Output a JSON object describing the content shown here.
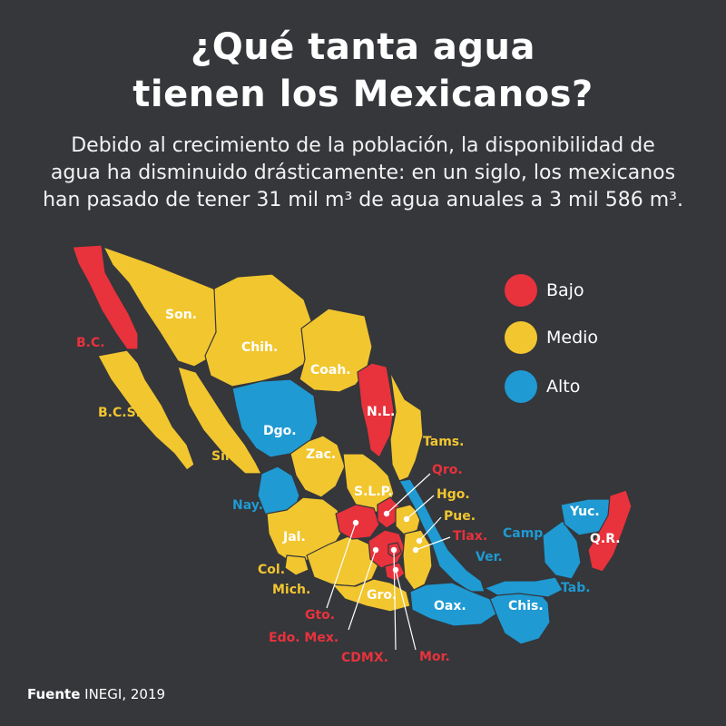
{
  "title_line1": "¿Qué tanta agua",
  "title_line2": "tienen los Mexicanos?",
  "subtitle_line1": "Debido al crecimiento de la población, la disponibilidad de",
  "subtitle_line2": "agua ha disminuido drásticamente: en un siglo, los mexicanos",
  "subtitle_line3": "han pasado de tener 31 mil m³ de agua anuales a 3 mil 586 m³.",
  "colors": {
    "bajo": "#e8323c",
    "medio": "#f2c62f",
    "alto": "#1f9ad3",
    "background": "#35373b"
  },
  "legend": [
    {
      "label": "Bajo",
      "level": "bajo"
    },
    {
      "label": "Medio",
      "level": "medio"
    },
    {
      "label": "Alto",
      "level": "alto"
    }
  ],
  "states": [
    {
      "label": "B.C.",
      "level": "bajo"
    },
    {
      "label": "B.C.S.",
      "level": "medio"
    },
    {
      "label": "Son.",
      "level": "medio"
    },
    {
      "label": "Chih.",
      "level": "medio"
    },
    {
      "label": "Coah.",
      "level": "medio"
    },
    {
      "label": "N.L.",
      "level": "bajo"
    },
    {
      "label": "Tams.",
      "level": "medio"
    },
    {
      "label": "Sin.",
      "level": "medio"
    },
    {
      "label": "Dgo.",
      "level": "alto"
    },
    {
      "label": "Zac.",
      "level": "medio"
    },
    {
      "label": "Nay.",
      "level": "alto"
    },
    {
      "label": "S.L.P.",
      "level": "medio"
    },
    {
      "label": "Qro.",
      "level": "bajo"
    },
    {
      "label": "Hgo.",
      "level": "medio"
    },
    {
      "label": "Pue.",
      "level": "medio"
    },
    {
      "label": "Tlax.",
      "level": "bajo"
    },
    {
      "label": "Ver.",
      "level": "alto"
    },
    {
      "label": "Jal.",
      "level": "medio"
    },
    {
      "label": "Col.",
      "level": "medio"
    },
    {
      "label": "Mich.",
      "level": "medio"
    },
    {
      "label": "Gto.",
      "level": "bajo"
    },
    {
      "label": "Edo. Mex.",
      "level": "bajo"
    },
    {
      "label": "CDMX.",
      "level": "bajo"
    },
    {
      "label": "Mor.",
      "level": "bajo"
    },
    {
      "label": "Gro.",
      "level": "medio"
    },
    {
      "label": "Oax.",
      "level": "alto"
    },
    {
      "label": "Chis.",
      "level": "alto"
    },
    {
      "label": "Camp.",
      "level": "alto"
    },
    {
      "label": "Tab.",
      "level": "alto"
    },
    {
      "label": "Yuc.",
      "level": "alto"
    },
    {
      "label": "Q.R.",
      "level": "bajo"
    }
  ],
  "source_label": "Fuente",
  "source_text": "INEGI, 2019"
}
